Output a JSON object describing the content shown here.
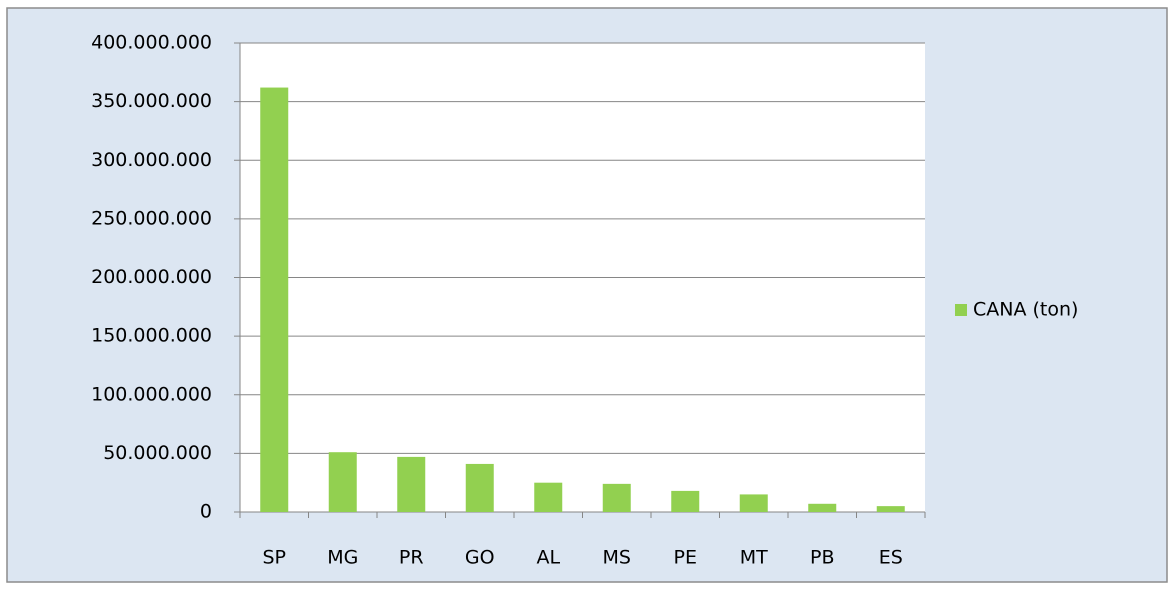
{
  "chart_data": {
    "type": "bar",
    "categories": [
      "SP",
      "MG",
      "PR",
      "GO",
      "AL",
      "MS",
      "PE",
      "MT",
      "PB",
      "ES"
    ],
    "series": [
      {
        "name": "CANA (ton)",
        "color": "#92d050",
        "values": [
          362000000,
          51000000,
          47000000,
          41000000,
          25000000,
          24000000,
          18000000,
          15000000,
          7000000,
          5000000
        ]
      }
    ],
    "ylim": [
      0,
      400000000
    ],
    "yticks": [
      0,
      {
        "value": 50000000,
        "label": "50.000.000"
      },
      {
        "value": 100000000,
        "label": "100.000.000"
      },
      {
        "value": 150000000,
        "label": "150.000.000"
      },
      {
        "value": 200000000,
        "label": "200.000.000"
      },
      {
        "value": 250000000,
        "label": "250.000.000"
      },
      {
        "value": 300000000,
        "label": "300.000.000"
      },
      {
        "value": 350000000,
        "label": "350.000.000"
      },
      {
        "value": 400000000,
        "label": "400.000.000"
      }
    ],
    "grid": true,
    "legend": "right"
  }
}
